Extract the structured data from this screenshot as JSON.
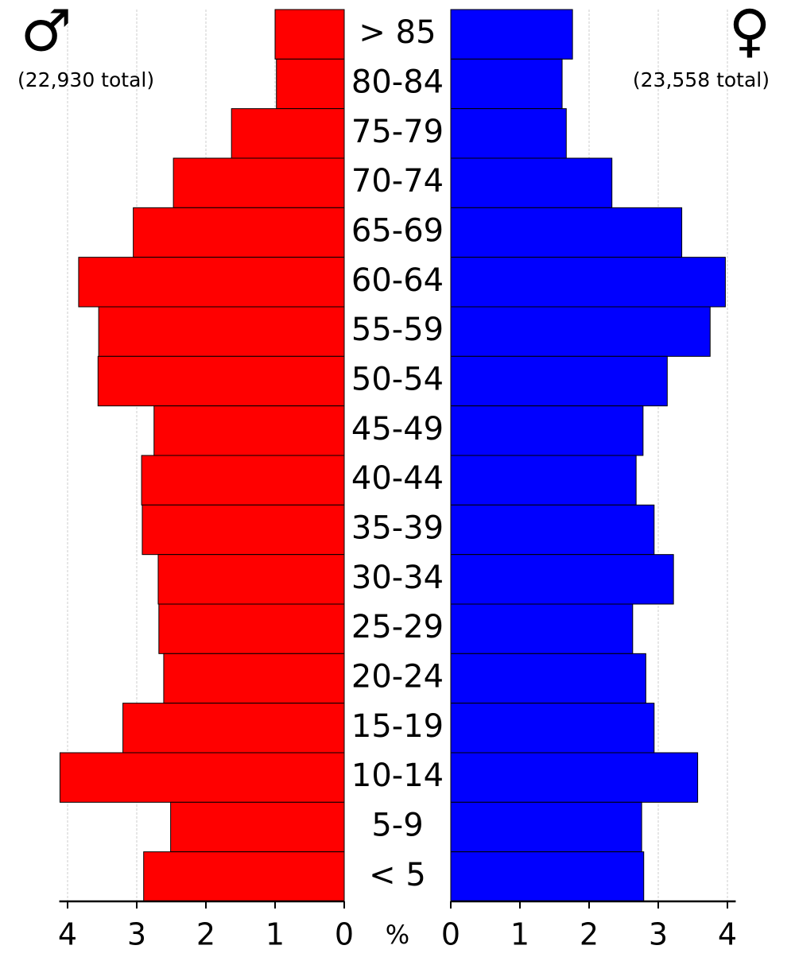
{
  "chart_data": {
    "type": "pyramid",
    "categories": [
      "> 85",
      "80-84",
      "75-79",
      "70-74",
      "65-69",
      "60-64",
      "55-59",
      "50-54",
      "45-49",
      "40-44",
      "35-39",
      "30-34",
      "25-29",
      "20-24",
      "15-19",
      "10-14",
      "5-9",
      "< 5"
    ],
    "series": [
      {
        "name": "♂",
        "note": "(22,930 total)",
        "color": "#ff0000",
        "side": "left",
        "values": [
          1.0,
          0.98,
          1.63,
          2.47,
          3.05,
          3.84,
          3.55,
          3.56,
          2.75,
          2.93,
          2.92,
          2.69,
          2.68,
          2.61,
          3.2,
          4.11,
          2.51,
          2.9
        ]
      },
      {
        "name": "♀",
        "note": "(23,558 total)",
        "color": "#0000ff",
        "side": "right",
        "values": [
          1.76,
          1.61,
          1.67,
          2.33,
          3.34,
          3.97,
          3.75,
          3.13,
          2.78,
          2.68,
          2.94,
          3.22,
          2.63,
          2.82,
          2.94,
          3.57,
          2.76,
          2.79
        ]
      }
    ],
    "x_label": "%",
    "xlim": [
      0,
      4.12
    ],
    "xticks": [
      0,
      1,
      2,
      3,
      4
    ],
    "grid": true
  }
}
